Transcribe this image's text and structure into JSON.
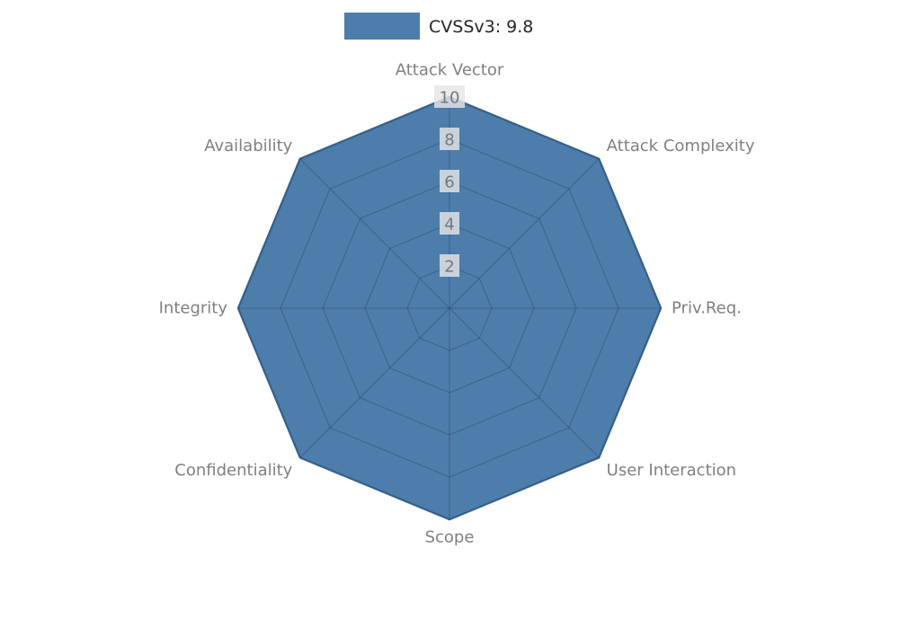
{
  "chart_data": {
    "type": "radar",
    "title": "",
    "categories": [
      "Attack Vector",
      "Attack Complexity",
      "Priv.Req.",
      "User Interaction",
      "Scope",
      "Confidentiality",
      "Integrity",
      "Availability"
    ],
    "series": [
      {
        "name": "CVSSv3: 9.8",
        "values": [
          10,
          10,
          10,
          10,
          10,
          10,
          10,
          10
        ]
      }
    ],
    "radial_ticks": [
      2,
      4,
      6,
      8,
      10
    ],
    "rlim": [
      0,
      10
    ],
    "grid": true,
    "legend_position": "top-center",
    "colors": {
      "fill": "#4d7dab",
      "fill_opacity": 1,
      "edge": "#3f6d9c",
      "grid": "rgba(30,40,55,0.30)",
      "axis_label": "#808080",
      "tick_label": "#777777",
      "tick_bg": "rgba(228,230,232,0.82)",
      "legend_text": "#262626",
      "background": "#ffffff"
    }
  }
}
